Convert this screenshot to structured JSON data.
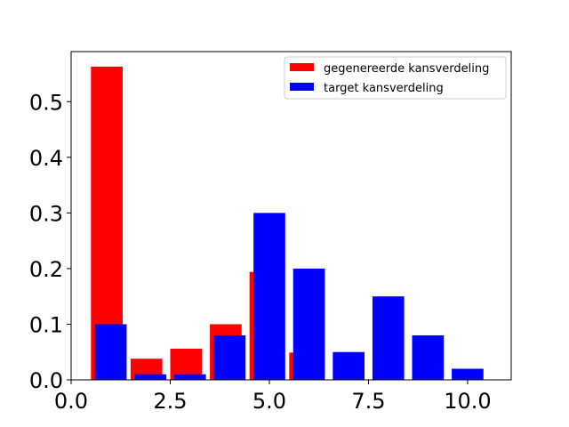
{
  "chart_data": {
    "type": "bar",
    "title": "",
    "xlabel": "",
    "ylabel": "",
    "xlim": [
      0,
      11.1
    ],
    "ylim": [
      0,
      0.59
    ],
    "x_ticks": [
      0.0,
      2.5,
      5.0,
      7.5,
      10.0
    ],
    "x_tick_labels": [
      "0.0",
      "2.5",
      "5.0",
      "7.5",
      "10.0"
    ],
    "y_ticks": [
      0.0,
      0.1,
      0.2,
      0.3,
      0.4,
      0.5
    ],
    "y_tick_labels": [
      "0.0",
      "0.1",
      "0.2",
      "0.3",
      "0.4",
      "0.5"
    ],
    "grid": false,
    "legend_position": "top-right",
    "series": [
      {
        "name": "gegenereerde kansverdeling",
        "color": "#ff0000",
        "bar_width": 0.8,
        "points": [
          {
            "x": 0.9,
            "y": 0.563
          },
          {
            "x": 1.9,
            "y": 0.038
          },
          {
            "x": 2.9,
            "y": 0.056
          },
          {
            "x": 3.9,
            "y": 0.1
          },
          {
            "x": 4.9,
            "y": 0.194
          },
          {
            "x": 5.9,
            "y": 0.049
          }
        ]
      },
      {
        "name": "target kansverdeling",
        "color": "#0000ff",
        "bar_width": 0.8,
        "points": [
          {
            "x": 1.0,
            "y": 0.1
          },
          {
            "x": 2.0,
            "y": 0.01
          },
          {
            "x": 3.0,
            "y": 0.01
          },
          {
            "x": 4.0,
            "y": 0.08
          },
          {
            "x": 5.0,
            "y": 0.3
          },
          {
            "x": 6.0,
            "y": 0.2
          },
          {
            "x": 7.0,
            "y": 0.05
          },
          {
            "x": 8.0,
            "y": 0.15
          },
          {
            "x": 9.0,
            "y": 0.08
          },
          {
            "x": 10.0,
            "y": 0.02
          }
        ]
      }
    ]
  }
}
